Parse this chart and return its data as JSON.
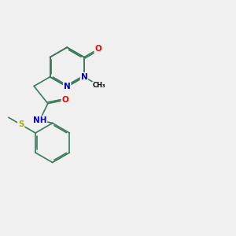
{
  "bg_color": "#f0f0f0",
  "bond_color": "#3a7a5a",
  "bond_width": 1.2,
  "dbo": 0.055,
  "atom_colors": {
    "O": "#ff0000",
    "N": "#0000cc",
    "S": "#aaaa00",
    "C": "#000000",
    "H": "#608080"
  },
  "font_size": 7.5,
  "fig_size": [
    3.0,
    3.0
  ],
  "dpi": 100
}
